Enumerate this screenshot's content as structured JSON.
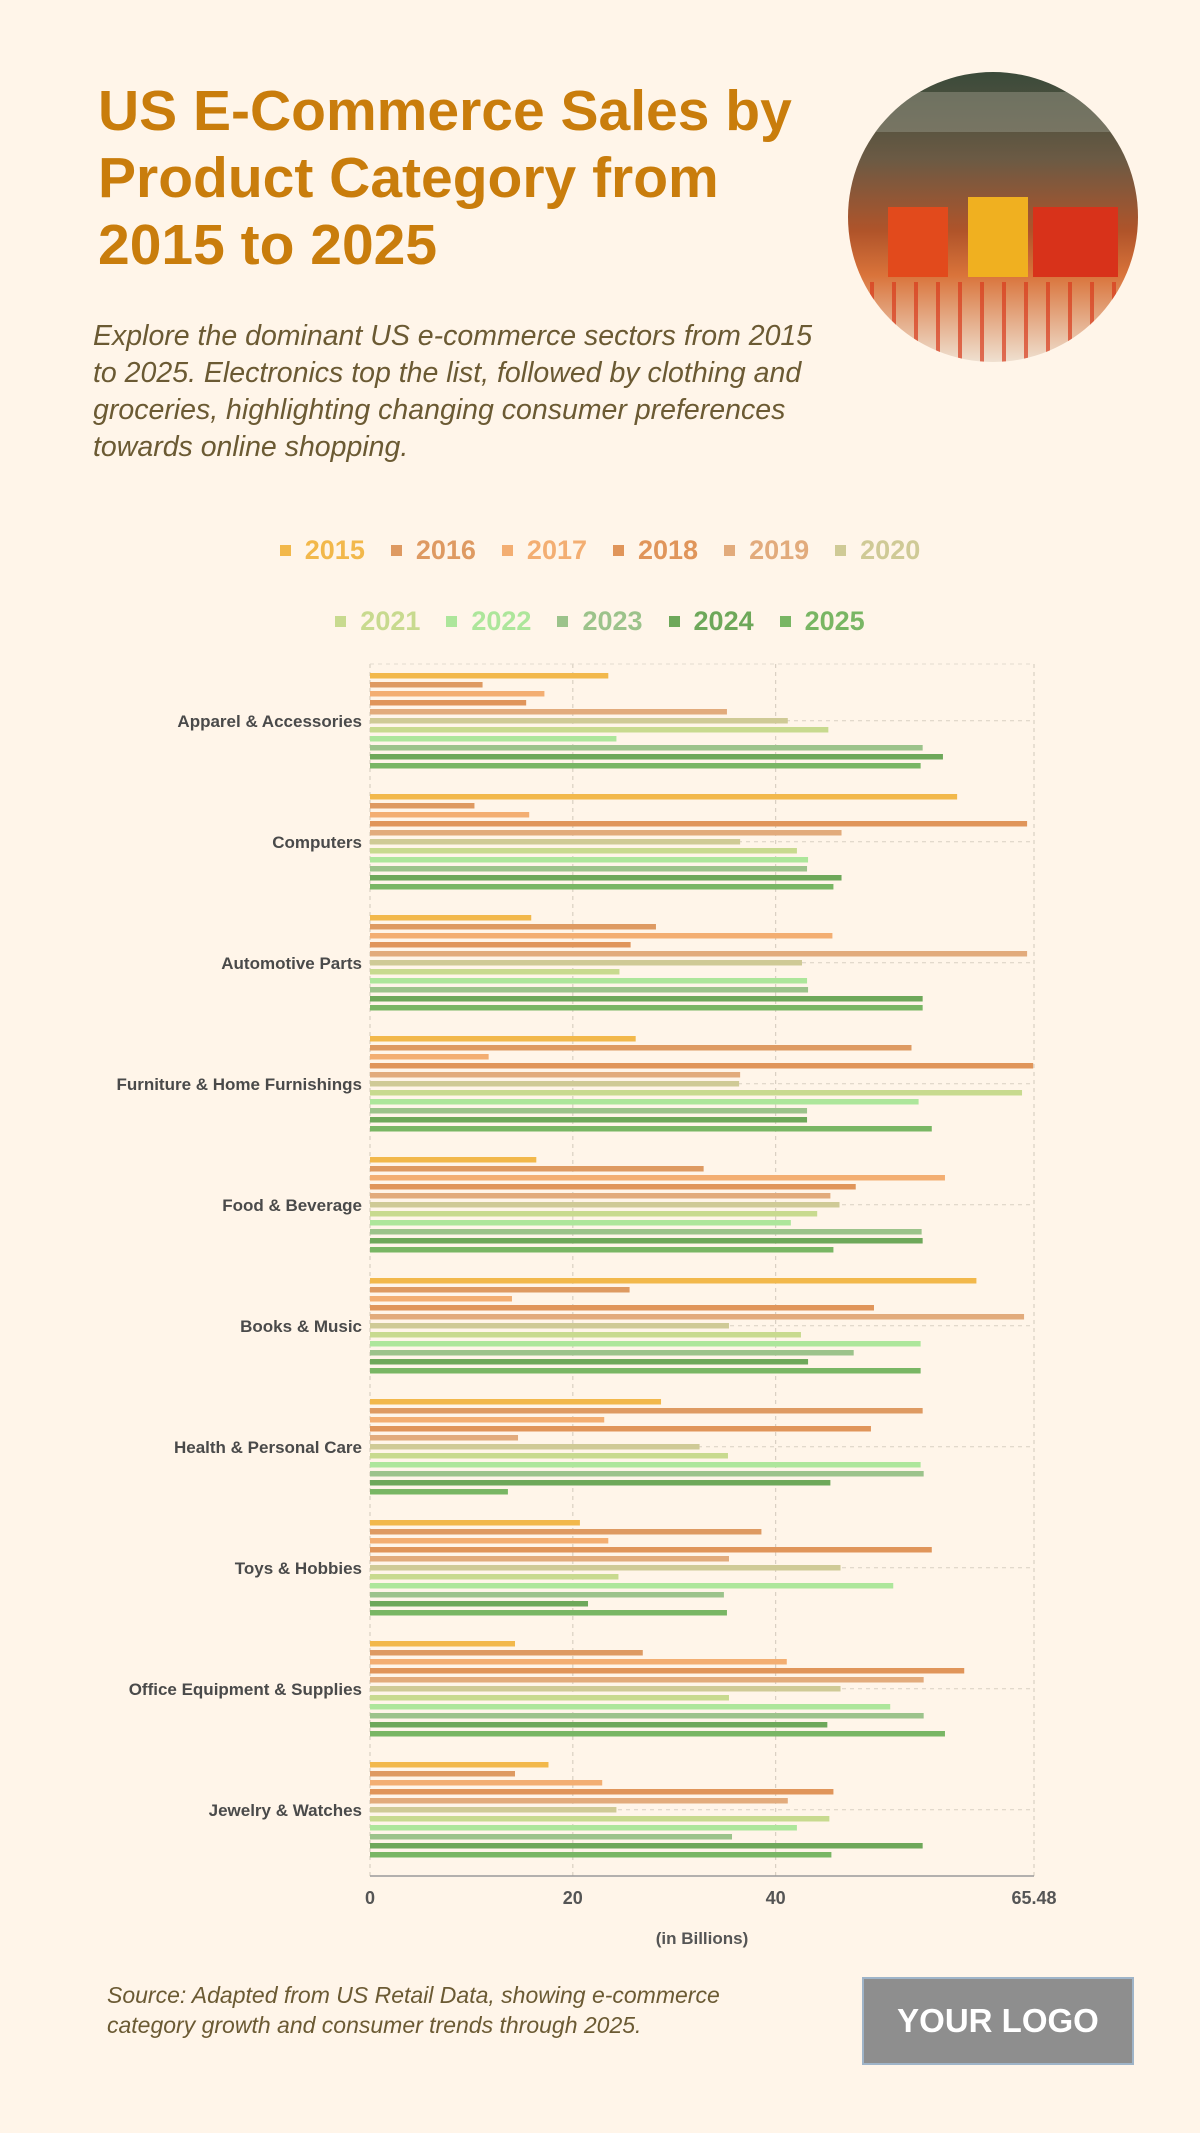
{
  "header": {
    "title": "US E-Commerce Sales by Product Category from 2015 to 2025",
    "subtitle": "Explore the dominant US e-commerce sectors from 2015 to 2025. Electronics top the list, followed by clothing and groceries, highlighting changing consumer preferences towards online shopping."
  },
  "footer": {
    "source": "Source: Adapted from US Retail Data, showing e-commerce category growth and consumer trends through 2025.",
    "logo": "YOUR LOGO"
  },
  "chart_data": {
    "type": "bar",
    "orientation": "horizontal",
    "title": "",
    "xlabel": "(in Billions)",
    "ylabel": "",
    "xlim": [
      0,
      65.48
    ],
    "xticks": [
      "0",
      "20",
      "40",
      "65.48"
    ],
    "grid": true,
    "legend_position": "top",
    "categories": [
      "Apparel & Accessories",
      "Computers",
      "Automotive Parts",
      "Furniture & Home Furnishings",
      "Food & Beverage",
      "Books & Music",
      "Health & Personal Care",
      "Toys & Hobbies",
      "Office Equipment & Supplies",
      "Jewelry & Watches"
    ],
    "series": [
      {
        "name": "2015",
        "color": "#f2b84b",
        "values": [
          23.5,
          57.9,
          15.9,
          26.2,
          16.4,
          59.8,
          28.7,
          20.7,
          14.3,
          17.6
        ]
      },
      {
        "name": "2016",
        "color": "#de9a62",
        "values": [
          11.1,
          10.3,
          28.2,
          53.4,
          32.9,
          25.6,
          54.5,
          38.6,
          26.9,
          14.3
        ]
      },
      {
        "name": "2017",
        "color": "#f3ae72",
        "values": [
          17.2,
          15.7,
          45.6,
          11.7,
          56.7,
          14.0,
          23.1,
          23.5,
          41.1,
          22.9
        ]
      },
      {
        "name": "2018",
        "color": "#e0955a",
        "values": [
          15.4,
          64.8,
          25.7,
          65.4,
          47.9,
          49.7,
          49.4,
          55.4,
          58.6,
          45.7
        ]
      },
      {
        "name": "2019",
        "color": "#e2ab7c",
        "values": [
          35.2,
          46.5,
          64.8,
          36.5,
          45.4,
          64.5,
          14.6,
          35.4,
          54.6,
          41.2
        ]
      },
      {
        "name": "2020",
        "color": "#cfca96",
        "values": [
          41.2,
          36.5,
          42.6,
          36.4,
          46.3,
          35.4,
          32.5,
          46.4,
          46.4,
          24.3
        ]
      },
      {
        "name": "2021",
        "color": "#c8da8f",
        "values": [
          45.2,
          42.1,
          24.6,
          64.3,
          44.1,
          42.5,
          35.3,
          24.5,
          35.4,
          45.3
        ]
      },
      {
        "name": "2022",
        "color": "#ade69b",
        "values": [
          24.3,
          43.2,
          43.1,
          54.1,
          41.5,
          54.3,
          54.3,
          51.6,
          51.3,
          42.1
        ]
      },
      {
        "name": "2023",
        "color": "#9cc38b",
        "values": [
          54.5,
          43.1,
          43.2,
          43.1,
          54.4,
          47.7,
          54.6,
          34.9,
          54.6,
          35.7
        ]
      },
      {
        "name": "2024",
        "color": "#6ea85a",
        "values": [
          56.5,
          46.5,
          54.5,
          43.1,
          54.5,
          43.2,
          45.4,
          21.5,
          45.1,
          54.5
        ]
      },
      {
        "name": "2025",
        "color": "#79b664",
        "values": [
          54.3,
          45.7,
          54.5,
          55.4,
          45.7,
          54.3,
          13.6,
          35.2,
          56.7,
          45.5
        ]
      }
    ]
  }
}
